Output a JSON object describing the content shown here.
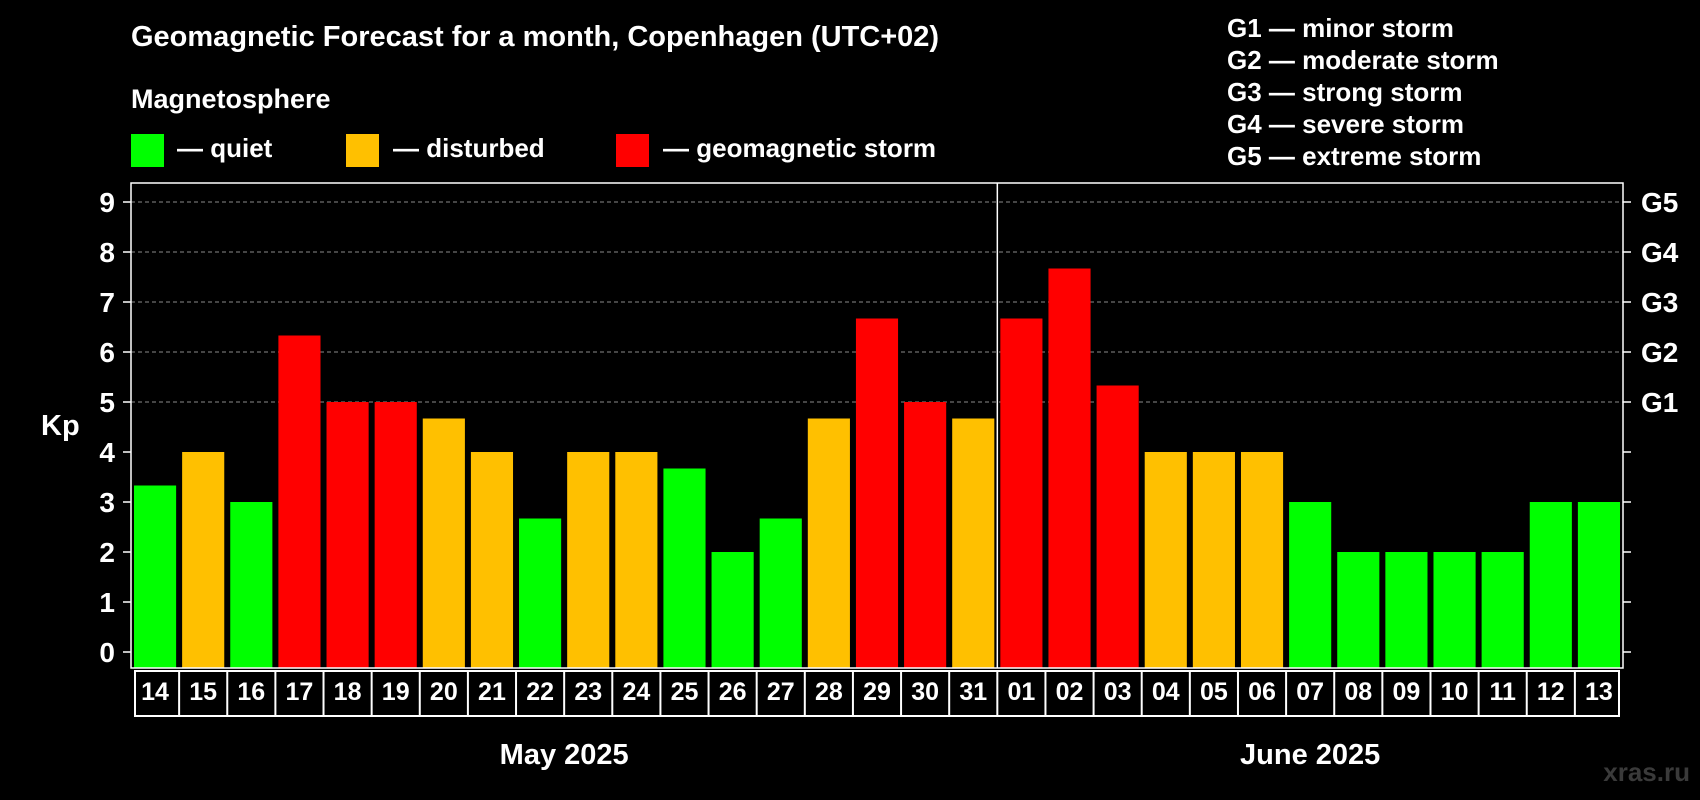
{
  "title": "Geomagnetic Forecast for a month, Copenhagen (UTC+02)",
  "legend": {
    "heading": "Magnetosphere",
    "items": [
      {
        "label": "— quiet",
        "color": "#00ff00"
      },
      {
        "label": "— disturbed",
        "color": "#ffc000"
      },
      {
        "label": "— geomagnetic storm",
        "color": "#ff0000"
      }
    ]
  },
  "storm_scale": [
    "G1 — minor storm",
    "G2 — moderate storm",
    "G3 — strong storm",
    "G4 — severe storm",
    "G5 — extreme storm"
  ],
  "watermark": "xras.ru",
  "chart_data": {
    "type": "bar",
    "ylabel": "Kp",
    "ylim": [
      0,
      9
    ],
    "yticks": [
      "0",
      "1",
      "2",
      "3",
      "4",
      "5",
      "6",
      "7",
      "8",
      "9"
    ],
    "right_axis_labels": [
      {
        "value": 5,
        "label": "G1"
      },
      {
        "value": 6,
        "label": "G2"
      },
      {
        "value": 7,
        "label": "G3"
      },
      {
        "value": 8,
        "label": "G4"
      },
      {
        "value": 9,
        "label": "G5"
      }
    ],
    "grid": "dashed horizontal at 5, 6, 7, 8, 9",
    "categories": [
      "14",
      "15",
      "16",
      "17",
      "18",
      "19",
      "20",
      "21",
      "22",
      "23",
      "24",
      "25",
      "26",
      "27",
      "28",
      "29",
      "30",
      "31",
      "01",
      "02",
      "03",
      "04",
      "05",
      "06",
      "07",
      "08",
      "09",
      "10",
      "11",
      "12",
      "13"
    ],
    "values": [
      3.33,
      4,
      3,
      6.33,
      5,
      5,
      4.67,
      4,
      2.67,
      4,
      4,
      3.67,
      2,
      2.67,
      4.67,
      6.67,
      5,
      4.67,
      6.67,
      7.67,
      5.33,
      4,
      4,
      4,
      3,
      2,
      2,
      2,
      2,
      3,
      3
    ],
    "levels": [
      "quiet",
      "disturbed",
      "quiet",
      "storm",
      "storm",
      "storm",
      "disturbed",
      "disturbed",
      "quiet",
      "disturbed",
      "disturbed",
      "quiet",
      "quiet",
      "quiet",
      "disturbed",
      "storm",
      "storm",
      "disturbed",
      "storm",
      "storm",
      "storm",
      "disturbed",
      "disturbed",
      "disturbed",
      "quiet",
      "quiet",
      "quiet",
      "quiet",
      "quiet",
      "quiet",
      "quiet"
    ],
    "level_colors": {
      "quiet": "#00ff00",
      "disturbed": "#ffc000",
      "storm": "#ff0000"
    },
    "months": [
      {
        "label": "May 2025",
        "days": 18
      },
      {
        "label": "June 2025",
        "days": 13
      }
    ]
  }
}
